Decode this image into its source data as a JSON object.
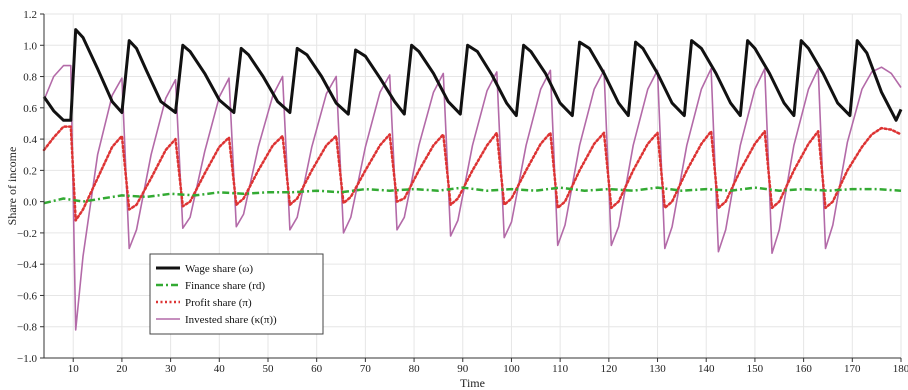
{
  "chart_data": {
    "type": "line",
    "title": "",
    "xlabel": "Time",
    "ylabel": "Share of income",
    "xlim": [
      4,
      180
    ],
    "ylim": [
      -1.0,
      1.2
    ],
    "grid": true,
    "legend_position": "bottom-left",
    "x_ticks": [
      10,
      20,
      30,
      40,
      50,
      60,
      70,
      80,
      90,
      100,
      110,
      120,
      130,
      140,
      150,
      160,
      170,
      180
    ],
    "y_ticks": [
      -1.0,
      -0.8,
      -0.6,
      -0.4,
      -0.2,
      0.0,
      0.2,
      0.4,
      0.6,
      0.8,
      1.0,
      1.2
    ],
    "x_tick_labels": [
      "10",
      "20",
      "30",
      "40",
      "50",
      "60",
      "70",
      "80",
      "90",
      "100",
      "110",
      "120",
      "130",
      "140",
      "150",
      "160",
      "170",
      "180"
    ],
    "y_tick_labels": [
      "−1.0",
      "−0.8",
      "−0.6",
      "−0.4",
      "−0.2",
      "0.0",
      "0.2",
      "0.4",
      "0.6",
      "0.8",
      "1.0",
      "1.2"
    ],
    "series": [
      {
        "name": "Wage share (ω)",
        "color": "#111111",
        "style": "solid",
        "width": 3,
        "x": [
          4,
          6,
          8,
          9.5,
          10.5,
          12,
          15,
          18,
          20,
          21.5,
          23,
          25,
          28,
          31,
          32.5,
          34,
          37,
          40,
          43,
          44.5,
          46,
          49,
          52,
          54.5,
          56,
          58,
          61,
          64,
          66.5,
          68,
          70,
          73,
          76,
          78,
          79.5,
          81,
          84,
          87,
          89.5,
          91,
          93,
          96,
          99,
          101,
          102.5,
          104,
          107,
          110,
          112.5,
          114,
          116,
          119,
          122,
          124,
          125.5,
          127,
          130,
          133,
          135.5,
          137,
          139,
          142,
          145,
          147,
          148.5,
          150,
          153,
          156,
          158,
          159.5,
          161,
          164,
          167,
          169.5,
          171,
          173,
          176,
          179,
          180
        ],
        "values": [
          0.67,
          0.58,
          0.52,
          0.52,
          1.1,
          1.05,
          0.85,
          0.64,
          0.57,
          1.03,
          0.98,
          0.84,
          0.64,
          0.57,
          1.0,
          0.96,
          0.82,
          0.65,
          0.57,
          0.98,
          0.94,
          0.8,
          0.64,
          0.57,
          0.98,
          0.94,
          0.8,
          0.63,
          0.56,
          0.97,
          0.93,
          0.79,
          0.64,
          0.56,
          1.0,
          0.96,
          0.82,
          0.64,
          0.56,
          1.0,
          0.96,
          0.81,
          0.63,
          0.55,
          1.0,
          0.96,
          0.82,
          0.63,
          0.55,
          1.02,
          0.98,
          0.82,
          0.63,
          0.55,
          1.02,
          0.98,
          0.82,
          0.63,
          0.55,
          1.03,
          0.98,
          0.82,
          0.63,
          0.55,
          1.03,
          0.98,
          0.82,
          0.63,
          0.55,
          1.03,
          0.98,
          0.82,
          0.63,
          0.55,
          1.03,
          0.95,
          0.7,
          0.52,
          0.59
        ]
      },
      {
        "name": "Finance share (rd)",
        "color": "#33aa33",
        "style": "dashdot",
        "width": 2.5,
        "x": [
          4,
          8,
          12,
          16,
          20,
          25,
          30,
          35,
          40,
          45,
          50,
          55,
          60,
          65,
          70,
          75,
          80,
          85,
          90,
          95,
          100,
          105,
          110,
          115,
          120,
          125,
          130,
          135,
          140,
          145,
          150,
          155,
          160,
          165,
          170,
          175,
          180
        ],
        "values": [
          -0.01,
          0.02,
          0.0,
          0.02,
          0.04,
          0.03,
          0.05,
          0.04,
          0.06,
          0.05,
          0.06,
          0.06,
          0.07,
          0.06,
          0.08,
          0.07,
          0.08,
          0.07,
          0.09,
          0.07,
          0.08,
          0.07,
          0.09,
          0.07,
          0.08,
          0.07,
          0.09,
          0.07,
          0.08,
          0.07,
          0.09,
          0.07,
          0.08,
          0.07,
          0.08,
          0.08,
          0.07
        ]
      },
      {
        "name": "Profit share (π)",
        "color": "#dd3333",
        "style": "dotted",
        "width": 2.5,
        "x": [
          4,
          6,
          8,
          9.5,
          10.5,
          12,
          15,
          18,
          20,
          21.5,
          23,
          26,
          29,
          31,
          32.5,
          34,
          37,
          40,
          42,
          43.5,
          45,
          48,
          51,
          53,
          54.5,
          56,
          59,
          62,
          64,
          65.5,
          67,
          70,
          73,
          75,
          76.5,
          78,
          81,
          84,
          86,
          87.5,
          89,
          92,
          95,
          97,
          98.5,
          100,
          103,
          106,
          108,
          109.5,
          111,
          114,
          117,
          119,
          120.5,
          122,
          125,
          128,
          130,
          131.5,
          133,
          136,
          139,
          141,
          142.5,
          144,
          147,
          150,
          152,
          153.5,
          155,
          158,
          161,
          163,
          164.5,
          166,
          169,
          172,
          174,
          176,
          178,
          180
        ],
        "values": [
          0.33,
          0.41,
          0.48,
          0.48,
          -0.12,
          -0.05,
          0.15,
          0.35,
          0.42,
          -0.05,
          -0.02,
          0.15,
          0.33,
          0.4,
          -0.03,
          0.0,
          0.18,
          0.35,
          0.41,
          -0.02,
          0.02,
          0.2,
          0.36,
          0.42,
          -0.02,
          0.02,
          0.2,
          0.36,
          0.42,
          -0.01,
          0.03,
          0.2,
          0.36,
          0.43,
          0.0,
          0.02,
          0.2,
          0.36,
          0.43,
          -0.02,
          0.02,
          0.2,
          0.36,
          0.44,
          -0.02,
          0.02,
          0.2,
          0.37,
          0.44,
          -0.04,
          0.0,
          0.2,
          0.37,
          0.44,
          -0.04,
          0.0,
          0.2,
          0.37,
          0.44,
          -0.04,
          0.0,
          0.2,
          0.37,
          0.45,
          -0.04,
          0.0,
          0.2,
          0.37,
          0.45,
          -0.04,
          0.0,
          0.2,
          0.37,
          0.45,
          -0.04,
          0.0,
          0.2,
          0.35,
          0.43,
          0.47,
          0.46,
          0.43
        ]
      },
      {
        "name": "Invested share (κ(π))",
        "color": "#b36aa8",
        "style": "solid",
        "width": 1.6,
        "x": [
          4,
          6,
          8,
          9.5,
          10.5,
          12,
          15,
          18,
          20,
          21.5,
          23,
          26,
          29,
          31,
          32.5,
          34,
          37,
          40,
          42,
          43.5,
          45,
          48,
          51,
          53,
          54.5,
          56,
          59,
          62,
          64,
          65.5,
          67,
          70,
          73,
          75,
          76.5,
          78,
          81,
          84,
          86,
          87.5,
          89,
          92,
          95,
          97,
          98.5,
          100,
          103,
          106,
          108,
          109.5,
          111,
          114,
          117,
          119,
          120.5,
          122,
          125,
          128,
          130,
          131.5,
          133,
          136,
          139,
          141,
          142.5,
          144,
          147,
          150,
          152,
          153.5,
          155,
          158,
          161,
          163,
          164.5,
          166,
          169,
          172,
          174,
          176,
          178,
          180
        ],
        "values": [
          0.65,
          0.8,
          0.87,
          0.87,
          -0.82,
          -0.35,
          0.3,
          0.68,
          0.79,
          -0.3,
          -0.18,
          0.3,
          0.66,
          0.78,
          -0.17,
          -0.1,
          0.32,
          0.67,
          0.79,
          -0.16,
          -0.08,
          0.35,
          0.68,
          0.8,
          -0.18,
          -0.1,
          0.35,
          0.69,
          0.8,
          -0.2,
          -0.1,
          0.35,
          0.7,
          0.81,
          -0.18,
          -0.1,
          0.36,
          0.7,
          0.82,
          -0.22,
          -0.12,
          0.36,
          0.71,
          0.83,
          -0.23,
          -0.13,
          0.36,
          0.72,
          0.84,
          -0.28,
          -0.15,
          0.36,
          0.72,
          0.84,
          -0.28,
          -0.16,
          0.36,
          0.72,
          0.84,
          -0.3,
          -0.16,
          0.36,
          0.72,
          0.85,
          -0.32,
          -0.18,
          0.36,
          0.72,
          0.85,
          -0.33,
          -0.18,
          0.36,
          0.72,
          0.85,
          -0.3,
          -0.15,
          0.38,
          0.72,
          0.83,
          0.86,
          0.82,
          0.73
        ]
      }
    ]
  }
}
